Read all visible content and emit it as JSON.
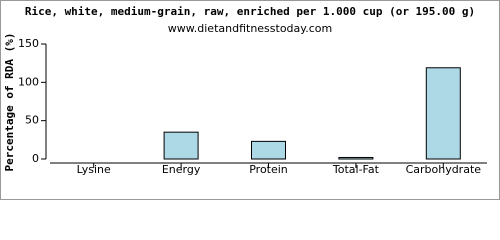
{
  "chart_data": {
    "type": "bar",
    "title": "Rice, white, medium-grain, raw, enriched per 1.000 cup (or 195.00 g)",
    "subtitle": "www.dietandfitnesstoday.com",
    "y_label": "Percentage of RDA (%)",
    "categories": [
      "Lysine",
      "Energy",
      "Protein",
      "Total-Fat",
      "Carbohydrate"
    ],
    "values": [
      0,
      35,
      23,
      2,
      119
    ],
    "color": "#add8e6",
    "ylim": [
      0,
      150
    ],
    "yticks": [
      0,
      50,
      100,
      150
    ],
    "grid": false
  }
}
